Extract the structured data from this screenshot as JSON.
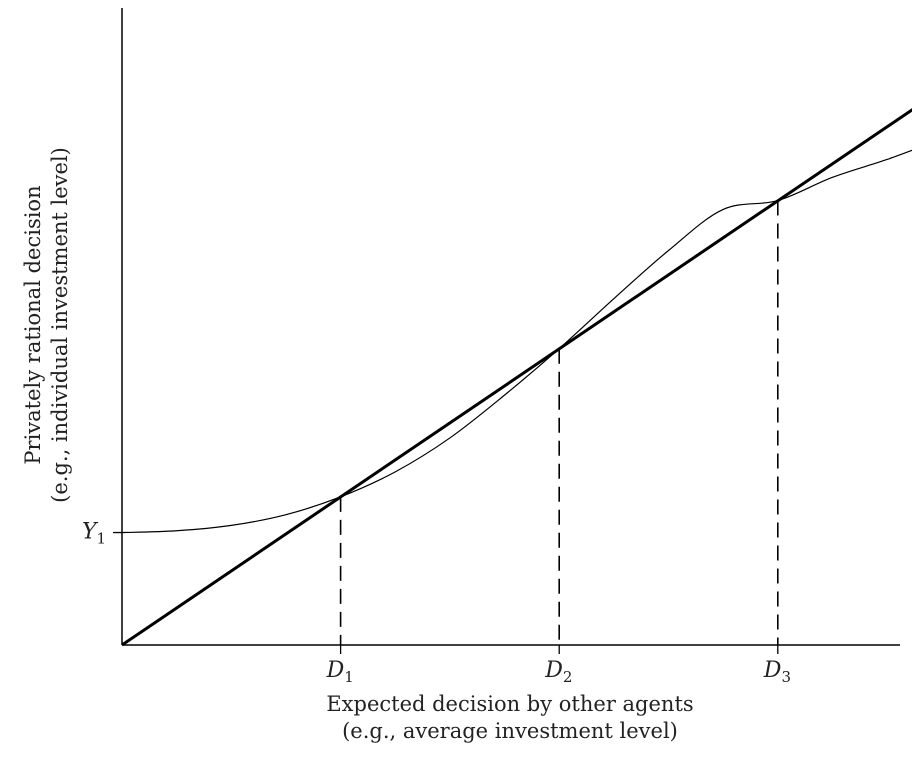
{
  "chart_data": {
    "type": "line",
    "xlabel": [
      "Expected decision by other agents",
      "(e.g., average investment level)"
    ],
    "ylabel": [
      "Privately rational decision",
      "(e.g., individual investment level)"
    ],
    "x_ticks": [
      {
        "letter": "D",
        "sub": "1",
        "value": 1
      },
      {
        "letter": "D",
        "sub": "2",
        "value": 2
      },
      {
        "letter": "D",
        "sub": "3",
        "value": 3
      }
    ],
    "y_ticks": [
      {
        "letter": "Y",
        "sub": "1",
        "value": 0.63
      }
    ],
    "xlim": [
      0,
      3.9
    ],
    "ylim": [
      0,
      3.6
    ],
    "series": [
      {
        "style": "thick",
        "x": [
          0,
          3.87
        ],
        "y": [
          0,
          3.21
        ]
      },
      {
        "style": "thin",
        "x": [
          0,
          0.25,
          0.5,
          0.75,
          1,
          1.25,
          1.5,
          1.75,
          2,
          2.25,
          2.5,
          2.75,
          3,
          3.25,
          3.5,
          3.75,
          3.87
        ],
        "y": [
          0.63,
          0.64,
          0.67,
          0.73,
          0.83,
          0.97,
          1.16,
          1.4,
          1.66,
          1.94,
          2.21,
          2.44,
          2.49,
          2.62,
          2.72,
          2.83,
          2.85
        ]
      }
    ],
    "drop_lines_at_x": [
      1,
      2,
      3
    ],
    "grid": false,
    "legend": "none"
  }
}
